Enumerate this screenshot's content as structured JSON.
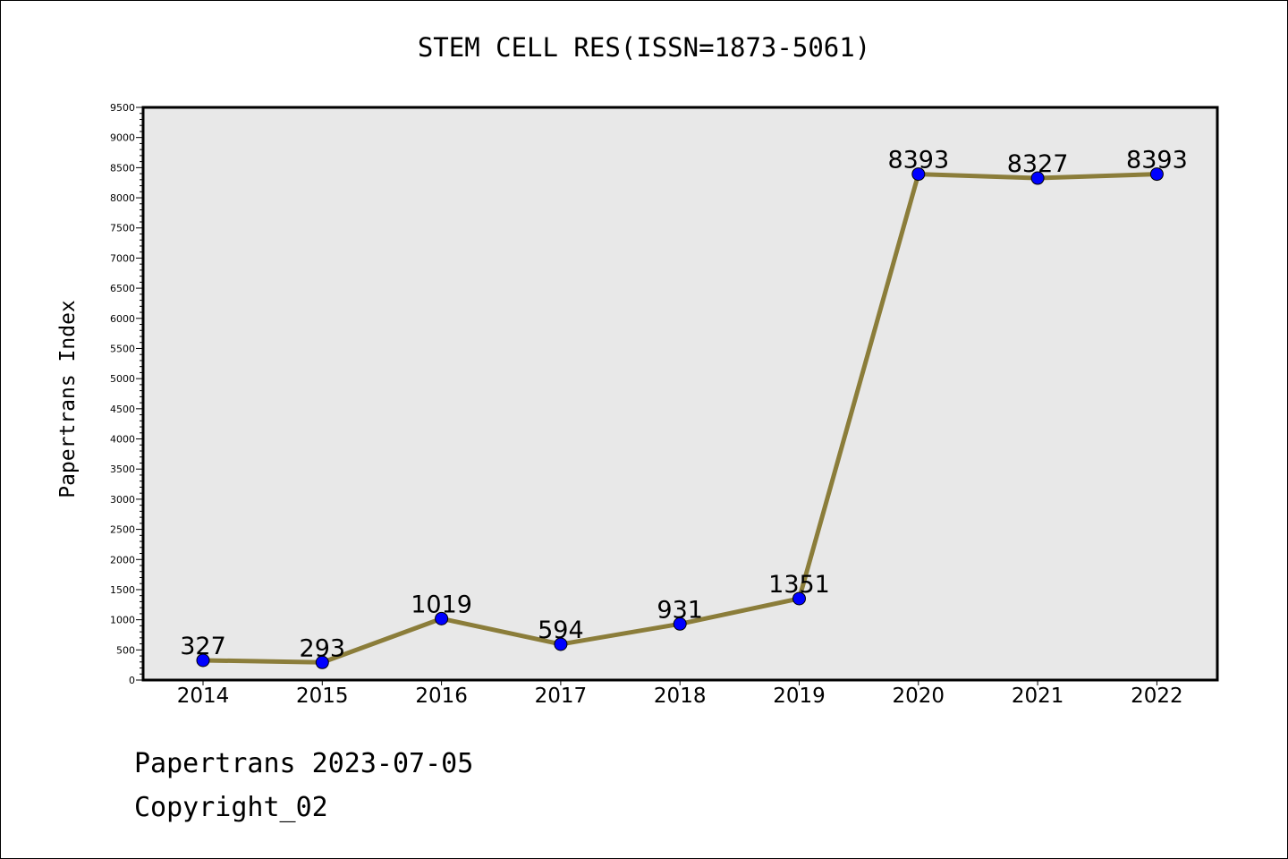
{
  "chart_data": {
    "type": "line",
    "title": "STEM CELL RES(ISSN=1873-5061)",
    "xlabel": "",
    "ylabel": "Papertrans Index",
    "categories": [
      "2014",
      "2015",
      "2016",
      "2017",
      "2018",
      "2019",
      "2020",
      "2021",
      "2022"
    ],
    "series": [
      {
        "values": [
          327,
          293,
          1019,
          594,
          931,
          1351,
          8393,
          8327,
          8393
        ]
      }
    ],
    "data_labels": [
      "327",
      "293",
      "1019",
      "594",
      "931",
      "1351",
      "8393",
      "8327",
      "8393"
    ],
    "ylim": [
      0,
      9500
    ],
    "ytick_step": 500,
    "grid": false,
    "colors": {
      "line": "#8B7D3A",
      "marker": "#0000FF",
      "plot_bg": "#E8E8E8"
    }
  },
  "footer": {
    "line1": "Papertrans 2023-07-05",
    "line2": "Copyright_02"
  }
}
